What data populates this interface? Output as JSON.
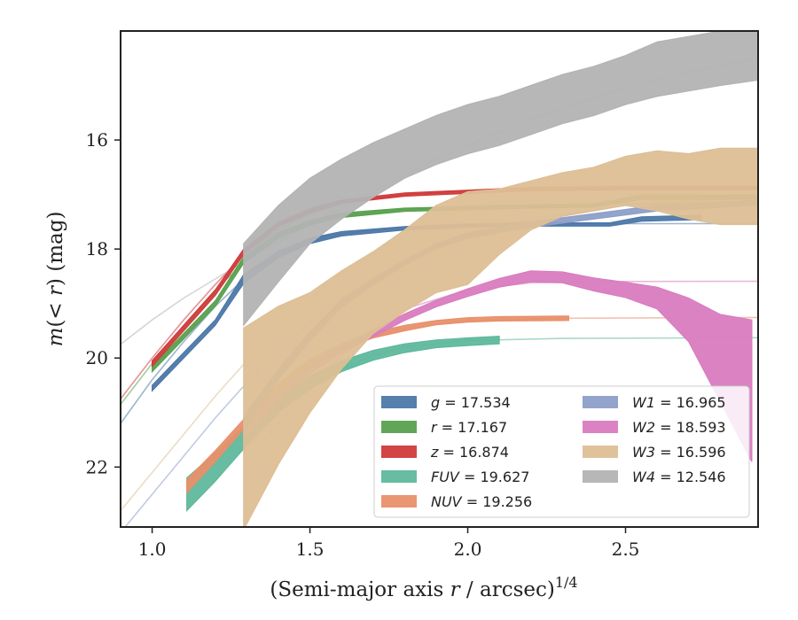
{
  "chart_data": {
    "type": "line",
    "xlabel": "(Semi-major axis r / arcsec)",
    "xlabel_parts": {
      "pre": "(Semi-major axis ",
      "var": "r",
      "post": " / arcsec)",
      "sup": "1/4"
    },
    "ylabel": "m(< r) (mag)",
    "ylabel_parts": {
      "var": "m",
      "mid": "(< ",
      "var2": "r",
      "post": ") (mag)"
    },
    "xlim": [
      0.9,
      2.92
    ],
    "ylim": [
      23.1,
      14.0
    ],
    "y_inverted": true,
    "xticks": [
      1.0,
      1.5,
      2.0,
      2.5
    ],
    "xtick_labels": [
      "1.0",
      "1.5",
      "2.0",
      "2.5"
    ],
    "yticks": [
      16,
      18,
      20,
      22
    ],
    "ytick_labels": [
      "16",
      "18",
      "20",
      "22"
    ],
    "grid": false,
    "legend_position": "lower-right",
    "series": [
      {
        "name": "g = 17.534",
        "var": "g",
        "value": "17.534",
        "color": "#4c78a8",
        "data": [
          [
            1.0,
            20.55
          ],
          [
            1.1,
            19.95
          ],
          [
            1.2,
            19.35
          ],
          [
            1.29,
            18.55
          ],
          [
            1.4,
            18.1
          ],
          [
            1.5,
            17.85
          ],
          [
            1.6,
            17.72
          ],
          [
            1.8,
            17.62
          ],
          [
            2.0,
            17.57
          ],
          [
            2.2,
            17.55
          ],
          [
            2.45,
            17.55
          ],
          [
            2.55,
            17.45
          ],
          [
            2.74,
            17.42
          ]
        ],
        "band": [
          0.05,
          0.05,
          0.05,
          0.08,
          0.06,
          0.05,
          0.04,
          0.03,
          0.03,
          0.03,
          0.03,
          0.04,
          0.04
        ],
        "model": [
          [
            0.9,
            21.2
          ],
          [
            1.0,
            20.4
          ],
          [
            1.1,
            19.7
          ],
          [
            1.2,
            19.05
          ],
          [
            1.3,
            18.5
          ],
          [
            1.4,
            18.1
          ],
          [
            1.5,
            17.85
          ],
          [
            1.6,
            17.72
          ],
          [
            1.8,
            17.6
          ],
          [
            2.0,
            17.56
          ],
          [
            2.5,
            17.535
          ],
          [
            2.92,
            17.534
          ]
        ]
      },
      {
        "name": "r = 17.167",
        "var": "r",
        "value": "17.167",
        "color": "#59a14f",
        "data": [
          [
            1.0,
            20.2
          ],
          [
            1.1,
            19.6
          ],
          [
            1.2,
            19.0
          ],
          [
            1.29,
            18.2
          ],
          [
            1.4,
            17.75
          ],
          [
            1.5,
            17.52
          ],
          [
            1.6,
            17.38
          ],
          [
            1.8,
            17.28
          ],
          [
            2.0,
            17.25
          ],
          [
            2.2,
            17.22
          ],
          [
            2.4,
            17.2
          ],
          [
            2.55,
            17.05
          ],
          [
            2.92,
            17.05
          ]
        ],
        "band": [
          0.05,
          0.05,
          0.05,
          0.06,
          0.05,
          0.04,
          0.04,
          0.03,
          0.03,
          0.03,
          0.03,
          0.04,
          0.04
        ],
        "model": [
          [
            0.9,
            20.85
          ],
          [
            1.0,
            20.1
          ],
          [
            1.1,
            19.4
          ],
          [
            1.2,
            18.75
          ],
          [
            1.3,
            18.2
          ],
          [
            1.4,
            17.8
          ],
          [
            1.5,
            17.55
          ],
          [
            1.6,
            17.4
          ],
          [
            1.8,
            17.27
          ],
          [
            2.0,
            17.21
          ],
          [
            2.5,
            17.17
          ],
          [
            2.92,
            17.167
          ]
        ]
      },
      {
        "name": "z = 16.874",
        "var": "z",
        "value": "16.874",
        "color": "#d03b3b",
        "data": [
          [
            1.0,
            20.1
          ],
          [
            1.1,
            19.45
          ],
          [
            1.2,
            18.8
          ],
          [
            1.29,
            18.05
          ],
          [
            1.4,
            17.55
          ],
          [
            1.5,
            17.3
          ],
          [
            1.6,
            17.13
          ],
          [
            1.8,
            17.0
          ],
          [
            2.0,
            16.95
          ],
          [
            2.2,
            16.9
          ],
          [
            2.5,
            16.88
          ],
          [
            2.92,
            16.88
          ]
        ],
        "band": [
          0.05,
          0.05,
          0.05,
          0.05,
          0.04,
          0.04,
          0.03,
          0.03,
          0.03,
          0.03,
          0.03,
          0.03
        ],
        "model": [
          [
            0.9,
            20.75
          ],
          [
            1.0,
            20.0
          ],
          [
            1.1,
            19.3
          ],
          [
            1.2,
            18.65
          ],
          [
            1.3,
            18.05
          ],
          [
            1.4,
            17.65
          ],
          [
            1.5,
            17.35
          ],
          [
            1.6,
            17.17
          ],
          [
            1.8,
            17.0
          ],
          [
            2.0,
            16.93
          ],
          [
            2.5,
            16.88
          ],
          [
            2.92,
            16.874
          ]
        ]
      },
      {
        "name": "FUV = 19.627",
        "var": "FUV",
        "value": "19.627",
        "color": "#5fb89c",
        "data": [
          [
            1.11,
            22.5
          ],
          [
            1.2,
            22.0
          ],
          [
            1.3,
            21.4
          ],
          [
            1.4,
            20.85
          ],
          [
            1.5,
            20.45
          ],
          [
            1.6,
            20.15
          ],
          [
            1.7,
            19.95
          ],
          [
            1.8,
            19.82
          ],
          [
            1.9,
            19.74
          ],
          [
            2.0,
            19.7
          ],
          [
            2.1,
            19.67
          ]
        ],
        "band": [
          0.3,
          0.26,
          0.2,
          0.15,
          0.12,
          0.1,
          0.09,
          0.08,
          0.07,
          0.07,
          0.07
        ],
        "model": [
          [
            1.3,
            21.6
          ],
          [
            1.4,
            21.0
          ],
          [
            1.5,
            20.55
          ],
          [
            1.6,
            20.2
          ],
          [
            1.7,
            19.95
          ],
          [
            1.8,
            19.8
          ],
          [
            2.0,
            19.68
          ],
          [
            2.3,
            19.64
          ],
          [
            2.92,
            19.627
          ]
        ]
      },
      {
        "name": "NUV = 19.256",
        "var": "NUV",
        "value": "19.256",
        "color": "#e8906c",
        "data": [
          [
            1.11,
            22.35
          ],
          [
            1.2,
            21.8
          ],
          [
            1.3,
            21.15
          ],
          [
            1.4,
            20.55
          ],
          [
            1.5,
            20.1
          ],
          [
            1.6,
            19.8
          ],
          [
            1.7,
            19.58
          ],
          [
            1.8,
            19.45
          ],
          [
            1.9,
            19.35
          ],
          [
            2.0,
            19.3
          ],
          [
            2.1,
            19.28
          ],
          [
            2.32,
            19.27
          ]
        ],
        "band": [
          0.12,
          0.1,
          0.09,
          0.08,
          0.07,
          0.06,
          0.05,
          0.05,
          0.04,
          0.04,
          0.04,
          0.04
        ],
        "model": [
          [
            1.3,
            21.3
          ],
          [
            1.4,
            20.7
          ],
          [
            1.5,
            20.2
          ],
          [
            1.6,
            19.85
          ],
          [
            1.7,
            19.6
          ],
          [
            1.8,
            19.45
          ],
          [
            2.0,
            19.32
          ],
          [
            2.3,
            19.27
          ],
          [
            2.92,
            19.256
          ]
        ]
      },
      {
        "name": "W1 = 16.965",
        "var": "W1",
        "value": "16.965",
        "color": "#8c9ec9",
        "data": [
          [
            1.29,
            21.2
          ],
          [
            1.4,
            20.3
          ],
          [
            1.5,
            19.6
          ],
          [
            1.6,
            19.0
          ],
          [
            1.7,
            18.6
          ],
          [
            1.8,
            18.25
          ],
          [
            1.9,
            17.95
          ],
          [
            2.0,
            17.75
          ],
          [
            2.2,
            17.55
          ],
          [
            2.4,
            17.4
          ],
          [
            2.6,
            17.25
          ],
          [
            2.92,
            17.15
          ]
        ],
        "band": [
          0.12,
          0.1,
          0.08,
          0.07,
          0.06,
          0.05,
          0.05,
          0.05,
          0.05,
          0.05,
          0.05,
          0.05
        ],
        "model": [
          [
            0.9,
            23.2
          ],
          [
            1.0,
            22.5
          ],
          [
            1.1,
            21.8
          ],
          [
            1.2,
            21.1
          ],
          [
            1.3,
            20.45
          ],
          [
            1.4,
            19.85
          ],
          [
            1.5,
            19.35
          ],
          [
            1.6,
            18.9
          ],
          [
            1.8,
            18.2
          ],
          [
            2.0,
            17.75
          ],
          [
            2.2,
            17.45
          ],
          [
            2.5,
            17.2
          ],
          [
            2.92,
            17.05
          ]
        ]
      },
      {
        "name": "W2 = 18.593",
        "var": "W2",
        "value": "18.593",
        "color": "#d97cbf",
        "data": [
          [
            1.29,
            21.4
          ],
          [
            1.4,
            20.7
          ],
          [
            1.5,
            20.2
          ],
          [
            1.6,
            19.85
          ],
          [
            1.7,
            19.55
          ],
          [
            1.8,
            19.25
          ],
          [
            1.9,
            19.0
          ],
          [
            2.0,
            18.8
          ],
          [
            2.1,
            18.62
          ],
          [
            2.2,
            18.5
          ],
          [
            2.3,
            18.52
          ],
          [
            2.4,
            18.65
          ],
          [
            2.5,
            18.75
          ],
          [
            2.6,
            18.9
          ],
          [
            2.7,
            19.3
          ],
          [
            2.8,
            20.0
          ],
          [
            2.9,
            20.6
          ]
        ],
        "band": [
          0.1,
          0.08,
          0.07,
          0.06,
          0.06,
          0.06,
          0.06,
          0.07,
          0.08,
          0.1,
          0.1,
          0.12,
          0.14,
          0.2,
          0.4,
          0.8,
          1.3
        ],
        "model": [
          [
            1.3,
            21.9
          ],
          [
            1.4,
            21.2
          ],
          [
            1.5,
            20.5
          ],
          [
            1.6,
            19.95
          ],
          [
            1.7,
            19.45
          ],
          [
            1.8,
            19.1
          ],
          [
            2.0,
            18.75
          ],
          [
            2.2,
            18.62
          ],
          [
            2.5,
            18.595
          ],
          [
            2.92,
            18.593
          ]
        ]
      },
      {
        "name": "W3 = 16.596",
        "var": "W3",
        "value": "16.596",
        "color": "#ddbf95",
        "data": [
          [
            1.29,
            21.3
          ],
          [
            1.4,
            20.5
          ],
          [
            1.5,
            19.9
          ],
          [
            1.6,
            19.3
          ],
          [
            1.7,
            18.8
          ],
          [
            1.8,
            18.4
          ],
          [
            1.9,
            18.0
          ],
          [
            2.0,
            17.8
          ],
          [
            2.1,
            17.5
          ],
          [
            2.2,
            17.2
          ],
          [
            2.3,
            17.0
          ],
          [
            2.4,
            16.9
          ],
          [
            2.5,
            16.75
          ],
          [
            2.6,
            16.75
          ],
          [
            2.7,
            16.85
          ],
          [
            2.8,
            16.85
          ],
          [
            2.92,
            16.85
          ]
        ],
        "band": [
          1.85,
          1.45,
          1.1,
          0.9,
          0.75,
          0.75,
          0.8,
          0.85,
          0.6,
          0.45,
          0.4,
          0.4,
          0.45,
          0.55,
          0.6,
          0.7,
          0.7
        ],
        "model": [
          [
            0.9,
            22.8
          ],
          [
            1.0,
            22.1
          ],
          [
            1.1,
            21.4
          ],
          [
            1.2,
            20.7
          ],
          [
            1.3,
            20.05
          ],
          [
            1.4,
            19.45
          ],
          [
            1.5,
            18.9
          ],
          [
            1.6,
            18.45
          ],
          [
            1.8,
            17.75
          ],
          [
            2.0,
            17.25
          ],
          [
            2.2,
            16.95
          ],
          [
            2.5,
            16.75
          ],
          [
            2.92,
            16.65
          ]
        ]
      },
      {
        "name": "W4 = 12.546",
        "var": "W4",
        "value": "12.546",
        "color": "#b3b3b3",
        "data": [
          [
            1.29,
            18.65
          ],
          [
            1.4,
            17.9
          ],
          [
            1.5,
            17.3
          ],
          [
            1.6,
            16.9
          ],
          [
            1.7,
            16.55
          ],
          [
            1.8,
            16.25
          ],
          [
            1.9,
            16.0
          ],
          [
            2.0,
            15.8
          ],
          [
            2.1,
            15.65
          ],
          [
            2.2,
            15.45
          ],
          [
            2.3,
            15.25
          ],
          [
            2.4,
            15.1
          ],
          [
            2.5,
            14.9
          ],
          [
            2.6,
            14.7
          ],
          [
            2.7,
            14.6
          ],
          [
            2.8,
            14.5
          ],
          [
            2.92,
            14.35
          ]
        ],
        "band": [
          0.75,
          0.7,
          0.6,
          0.55,
          0.5,
          0.45,
          0.45,
          0.45,
          0.45,
          0.45,
          0.45,
          0.45,
          0.45,
          0.5,
          0.5,
          0.5,
          0.55
        ],
        "model": [
          [
            0.9,
            19.75
          ],
          [
            1.0,
            19.3
          ],
          [
            1.1,
            18.9
          ],
          [
            1.2,
            18.55
          ],
          [
            1.3,
            18.2
          ],
          [
            1.5,
            17.55
          ],
          [
            1.7,
            16.95
          ],
          [
            1.9,
            16.35
          ],
          [
            2.1,
            15.85
          ],
          [
            2.3,
            15.4
          ],
          [
            2.5,
            15.05
          ],
          [
            2.7,
            14.75
          ],
          [
            2.92,
            14.5
          ]
        ]
      }
    ]
  }
}
